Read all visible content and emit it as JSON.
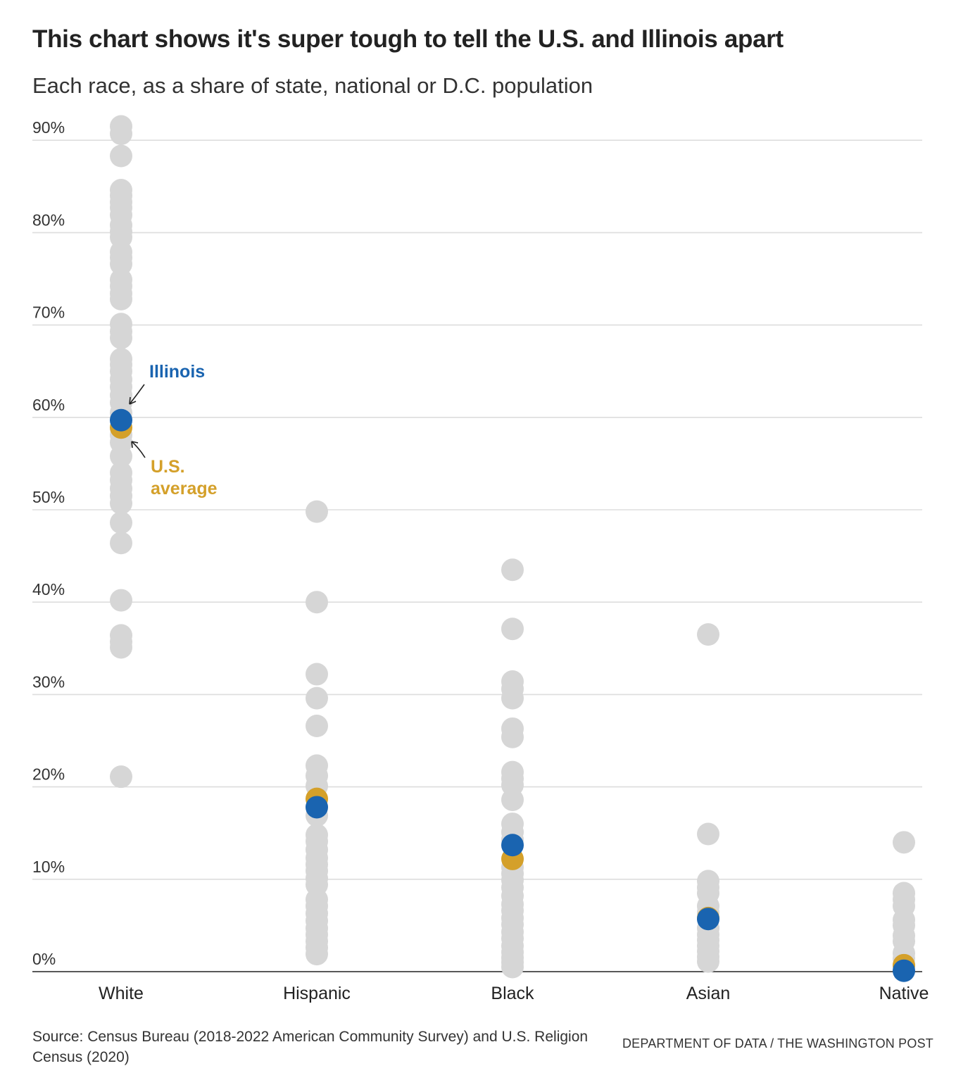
{
  "title": "This chart shows it's super tough to tell the U.S. and Illinois apart",
  "subtitle": "Each race, as a share of state, national or D.C. population",
  "source": "Source: Census Bureau (2018-2022 American Community Survey) and U.S. Religion Census (2020)",
  "credit": "DEPARTMENT OF DATA / THE WASHINGTON POST",
  "colors": {
    "others": "#d6d6d6",
    "illinois": "#1a64b0",
    "us": "#d4a02a",
    "grid": "#dddddd",
    "axis": "#222222"
  },
  "chart_data": {
    "type": "scatter",
    "title": "This chart shows it's super tough to tell the U.S. and Illinois apart",
    "subtitle": "Each race, as a share of state, national or D.C. population",
    "categories": [
      "White",
      "Hispanic",
      "Black",
      "Asian",
      "Native"
    ],
    "ylim": [
      0,
      90
    ],
    "yticks": [
      0,
      10,
      20,
      30,
      40,
      50,
      60,
      70,
      80,
      90
    ],
    "ytick_labels": [
      "0%",
      "10%",
      "20%",
      "30%",
      "40%",
      "50%",
      "60%",
      "70%",
      "80%",
      "90%"
    ],
    "grid": true,
    "series": [
      {
        "values": [
          [
            91.5,
            90.7,
            88.3,
            84.6,
            84.0,
            83.3,
            82.7,
            81.9,
            80.8,
            80.1,
            79.5,
            77.9,
            77.3,
            76.6,
            74.9,
            74.2,
            73.4,
            72.8,
            70.1,
            69.3,
            68.6,
            66.3,
            65.7,
            65.0,
            64.1,
            63.3,
            62.4,
            61.6,
            60.5,
            59.9,
            58.1,
            57.3,
            55.8,
            54.0,
            53.2,
            52.3,
            51.5,
            50.7,
            48.6,
            46.4,
            40.2,
            36.4,
            35.7,
            35.1,
            21.1
          ],
          [
            49.8,
            40.0,
            32.2,
            29.6,
            26.6,
            22.3,
            21.2,
            20.1,
            16.9,
            14.8,
            14.1,
            13.2,
            12.3,
            11.6,
            10.9,
            10.1,
            9.4,
            7.8,
            7.1,
            6.3,
            5.5,
            4.7,
            4.0,
            3.3,
            2.6,
            1.9
          ],
          [
            43.5,
            37.1,
            31.4,
            30.6,
            29.6,
            26.3,
            25.4,
            21.6,
            20.9,
            20.2,
            18.6,
            16.0,
            15.1,
            14.3,
            11.3,
            10.6,
            9.9,
            9.1,
            8.2,
            7.3,
            6.6,
            5.8,
            5.1,
            4.3,
            3.6,
            2.8,
            2.1,
            1.5,
            1.0,
            0.5
          ],
          [
            36.5,
            14.9,
            9.8,
            9.1,
            8.5,
            7.1,
            6.4,
            4.7,
            4.0,
            3.4,
            2.8,
            2.2,
            1.6,
            1.1
          ],
          [
            14.0,
            8.5,
            7.8,
            7.1,
            5.6,
            5.0,
            3.9,
            3.3,
            2.0,
            1.4,
            0.6
          ]
        ]
      },
      {
        "name": "U.S. average",
        "values": [
          58.9,
          18.7,
          12.2,
          5.8,
          0.7
        ]
      },
      {
        "name": "Illinois",
        "values": [
          59.7,
          17.8,
          13.7,
          5.7,
          0.1
        ]
      }
    ],
    "annotations": [
      {
        "text": "Illinois",
        "category": "White"
      },
      {
        "text_lines": [
          "U.S.",
          "average"
        ],
        "category": "White"
      }
    ]
  }
}
